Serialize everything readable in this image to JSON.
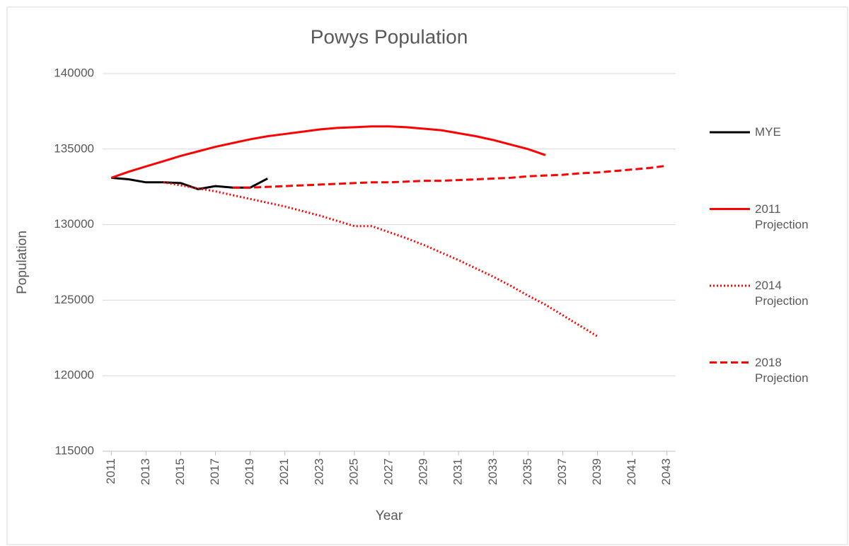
{
  "chart_data": {
    "type": "line",
    "title": "Powys Population",
    "xlabel": "Year",
    "ylabel": "Population",
    "xlim": [
      2010.5,
      2043.5
    ],
    "xticks": [
      2011,
      2013,
      2015,
      2017,
      2019,
      2021,
      2023,
      2025,
      2027,
      2029,
      2031,
      2033,
      2035,
      2037,
      2039,
      2041,
      2043
    ],
    "ylim": [
      115000,
      140000
    ],
    "yticks": [
      115000,
      120000,
      125000,
      130000,
      135000,
      140000
    ],
    "grid": true,
    "legend": "right",
    "series": [
      {
        "name": "MYE",
        "color": "#000000",
        "dash": "solid",
        "x": [
          2011,
          2012,
          2013,
          2014,
          2015,
          2016,
          2017,
          2018,
          2019,
          2020
        ],
        "values": [
          133100,
          133000,
          132800,
          132800,
          132750,
          132350,
          132550,
          132450,
          132450,
          133050
        ]
      },
      {
        "name": "2011 Projection",
        "color": "#ff0000",
        "dash": "solid",
        "x": [
          2011,
          2012,
          2013,
          2014,
          2015,
          2016,
          2017,
          2018,
          2019,
          2020,
          2021,
          2022,
          2023,
          2024,
          2025,
          2026,
          2027,
          2028,
          2029,
          2030,
          2031,
          2032,
          2033,
          2034,
          2035,
          2036
        ],
        "values": [
          133100,
          133500,
          133850,
          134200,
          134550,
          134850,
          135150,
          135400,
          135650,
          135850,
          136000,
          136150,
          136300,
          136400,
          136450,
          136500,
          136500,
          136450,
          136350,
          136250,
          136050,
          135850,
          135600,
          135300,
          135000,
          134600
        ]
      },
      {
        "name": "2014 Projection",
        "color": "#ff0000",
        "dash": "dotted",
        "x": [
          2014,
          2015,
          2016,
          2017,
          2018,
          2019,
          2020,
          2021,
          2022,
          2023,
          2024,
          2025,
          2026,
          2027,
          2028,
          2029,
          2030,
          2031,
          2032,
          2033,
          2034,
          2035,
          2036,
          2037,
          2038,
          2039
        ],
        "values": [
          132800,
          132600,
          132400,
          132200,
          131950,
          131700,
          131450,
          131200,
          130900,
          130600,
          130250,
          129900,
          129900,
          129500,
          129100,
          128650,
          128150,
          127650,
          127100,
          126550,
          125950,
          125300,
          124700,
          124000,
          123300,
          122600
        ]
      },
      {
        "name": "2018 Projection",
        "color": "#ff0000",
        "dash": "dashed",
        "x": [
          2018,
          2019,
          2020,
          2021,
          2022,
          2023,
          2024,
          2025,
          2026,
          2027,
          2028,
          2029,
          2030,
          2031,
          2032,
          2033,
          2034,
          2035,
          2036,
          2037,
          2038,
          2039,
          2040,
          2041,
          2042,
          2043
        ],
        "values": [
          132450,
          132450,
          132500,
          132550,
          132600,
          132650,
          132700,
          132750,
          132800,
          132800,
          132850,
          132900,
          132900,
          132950,
          133000,
          133050,
          133100,
          133200,
          133250,
          133300,
          133400,
          133450,
          133550,
          133650,
          133750,
          133900
        ]
      }
    ]
  }
}
